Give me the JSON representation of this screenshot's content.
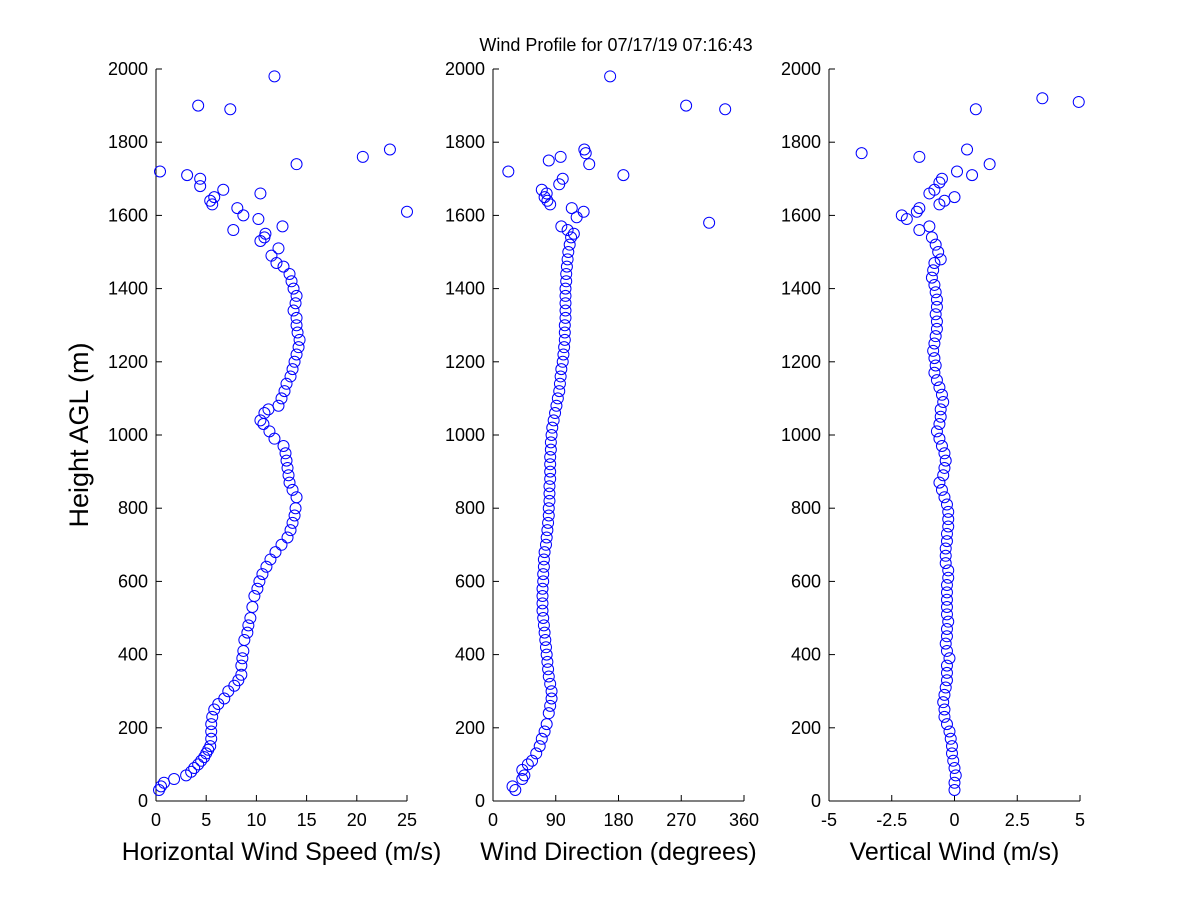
{
  "figure": {
    "title": "Wind Profile for  07/17/19 07:16:43",
    "ylabel": "Height AGL (m)",
    "marker_color": "#0000ff"
  },
  "chart_data": [
    {
      "type": "scatter",
      "xlabel": "Horizontal Wind Speed (m/s)",
      "xlim": [
        0,
        25
      ],
      "xticks": [
        "0",
        "5",
        "10",
        "15",
        "20",
        "25"
      ],
      "ylim": [
        0,
        2000
      ],
      "yticks": [
        "0",
        "200",
        "400",
        "600",
        "800",
        "1000",
        "1200",
        "1400",
        "1600",
        "1800",
        "2000"
      ],
      "grid": false,
      "points": [
        [
          0.3,
          30
        ],
        [
          0.5,
          40
        ],
        [
          0.8,
          50
        ],
        [
          1.8,
          60
        ],
        [
          3,
          70
        ],
        [
          3.5,
          80
        ],
        [
          3.8,
          90
        ],
        [
          4.2,
          100
        ],
        [
          4.5,
          110
        ],
        [
          4.8,
          120
        ],
        [
          5,
          130
        ],
        [
          5.2,
          140
        ],
        [
          5.4,
          150
        ],
        [
          5.5,
          170
        ],
        [
          5.5,
          190
        ],
        [
          5.5,
          210
        ],
        [
          5.6,
          230
        ],
        [
          5.8,
          250
        ],
        [
          6.2,
          265
        ],
        [
          6.8,
          280
        ],
        [
          7.2,
          300
        ],
        [
          7.8,
          315
        ],
        [
          8.2,
          330
        ],
        [
          8.5,
          345
        ],
        [
          8.5,
          370
        ],
        [
          8.6,
          390
        ],
        [
          8.7,
          410
        ],
        [
          8.8,
          440
        ],
        [
          9.1,
          460
        ],
        [
          9.2,
          480
        ],
        [
          9.4,
          500
        ],
        [
          9.6,
          530
        ],
        [
          9.8,
          560
        ],
        [
          10.1,
          580
        ],
        [
          10.3,
          600
        ],
        [
          10.6,
          620
        ],
        [
          11,
          640
        ],
        [
          11.4,
          660
        ],
        [
          11.9,
          680
        ],
        [
          12.5,
          700
        ],
        [
          13.1,
          720
        ],
        [
          13.4,
          740
        ],
        [
          13.6,
          760
        ],
        [
          13.8,
          780
        ],
        [
          13.9,
          800
        ],
        [
          14,
          830
        ],
        [
          13.6,
          850
        ],
        [
          13.3,
          870
        ],
        [
          13.2,
          890
        ],
        [
          13.1,
          910
        ],
        [
          13,
          930
        ],
        [
          12.9,
          950
        ],
        [
          12.7,
          970
        ],
        [
          11.8,
          990
        ],
        [
          11.3,
          1010
        ],
        [
          10.7,
          1030
        ],
        [
          10.4,
          1040
        ],
        [
          10.8,
          1060
        ],
        [
          11.2,
          1070
        ],
        [
          12.2,
          1080
        ],
        [
          12.5,
          1100
        ],
        [
          12.8,
          1120
        ],
        [
          13,
          1140
        ],
        [
          13.4,
          1160
        ],
        [
          13.6,
          1180
        ],
        [
          13.8,
          1200
        ],
        [
          14,
          1220
        ],
        [
          14.2,
          1240
        ],
        [
          14.3,
          1260
        ],
        [
          14.1,
          1280
        ],
        [
          14,
          1300
        ],
        [
          14,
          1320
        ],
        [
          13.7,
          1340
        ],
        [
          13.9,
          1360
        ],
        [
          14,
          1380
        ],
        [
          13.7,
          1400
        ],
        [
          13.5,
          1420
        ],
        [
          13.3,
          1440
        ],
        [
          12.7,
          1460
        ],
        [
          12,
          1470
        ],
        [
          11.5,
          1490
        ],
        [
          12.2,
          1510
        ],
        [
          10.4,
          1530
        ],
        [
          10.8,
          1540
        ],
        [
          10.9,
          1550
        ],
        [
          7.7,
          1560
        ],
        [
          12.6,
          1570
        ],
        [
          10.2,
          1590
        ],
        [
          25,
          1610
        ],
        [
          8.1,
          1620
        ],
        [
          8.7,
          1600
        ],
        [
          5.6,
          1630
        ],
        [
          5.4,
          1640
        ],
        [
          5.8,
          1650
        ],
        [
          10.4,
          1660
        ],
        [
          6.7,
          1670
        ],
        [
          4.4,
          1680
        ],
        [
          4.4,
          1700
        ],
        [
          3.1,
          1710
        ],
        [
          0.4,
          1720
        ],
        [
          14,
          1740
        ],
        [
          20.6,
          1760
        ],
        [
          23.3,
          1780
        ],
        [
          7.4,
          1890
        ],
        [
          4.2,
          1900
        ],
        [
          11.8,
          1980
        ]
      ]
    },
    {
      "type": "scatter",
      "xlabel": "Wind Direction (degrees)",
      "xlim": [
        0,
        360
      ],
      "xticks": [
        "0",
        "90",
        "180",
        "270",
        "360"
      ],
      "ylim": [
        0,
        2000
      ],
      "yticks": [
        "0",
        "200",
        "400",
        "600",
        "800",
        "1000",
        "1200",
        "1400",
        "1600",
        "1800",
        "2000"
      ],
      "grid": false,
      "points": [
        [
          32,
          30
        ],
        [
          28,
          40
        ],
        [
          42,
          60
        ],
        [
          45,
          70
        ],
        [
          42,
          85
        ],
        [
          50,
          100
        ],
        [
          56,
          110
        ],
        [
          62,
          130
        ],
        [
          67,
          150
        ],
        [
          70,
          170
        ],
        [
          74,
          190
        ],
        [
          77,
          210
        ],
        [
          80,
          240
        ],
        [
          82,
          260
        ],
        [
          84,
          280
        ],
        [
          84,
          300
        ],
        [
          82,
          320
        ],
        [
          80,
          340
        ],
        [
          79,
          360
        ],
        [
          78,
          380
        ],
        [
          77,
          400
        ],
        [
          76,
          420
        ],
        [
          75,
          440
        ],
        [
          74,
          460
        ],
        [
          73,
          480
        ],
        [
          72,
          500
        ],
        [
          71,
          520
        ],
        [
          71,
          540
        ],
        [
          71,
          560
        ],
        [
          71,
          580
        ],
        [
          72,
          600
        ],
        [
          72,
          620
        ],
        [
          73,
          640
        ],
        [
          73,
          660
        ],
        [
          74,
          680
        ],
        [
          76,
          700
        ],
        [
          77,
          720
        ],
        [
          78,
          740
        ],
        [
          79,
          760
        ],
        [
          80,
          780
        ],
        [
          80,
          800
        ],
        [
          81,
          820
        ],
        [
          81,
          840
        ],
        [
          81,
          860
        ],
        [
          82,
          880
        ],
        [
          82,
          900
        ],
        [
          82,
          920
        ],
        [
          82,
          940
        ],
        [
          83,
          960
        ],
        [
          83,
          980
        ],
        [
          84,
          1000
        ],
        [
          85,
          1020
        ],
        [
          87,
          1040
        ],
        [
          89,
          1060
        ],
        [
          91,
          1080
        ],
        [
          93,
          1100
        ],
        [
          95,
          1120
        ],
        [
          96,
          1140
        ],
        [
          97,
          1160
        ],
        [
          98,
          1180
        ],
        [
          100,
          1200
        ],
        [
          101,
          1220
        ],
        [
          102,
          1240
        ],
        [
          103,
          1260
        ],
        [
          103,
          1280
        ],
        [
          103,
          1300
        ],
        [
          104,
          1320
        ],
        [
          104,
          1340
        ],
        [
          104,
          1360
        ],
        [
          104,
          1380
        ],
        [
          104,
          1400
        ],
        [
          105,
          1420
        ],
        [
          105,
          1440
        ],
        [
          106,
          1460
        ],
        [
          107,
          1480
        ],
        [
          108,
          1500
        ],
        [
          110,
          1520
        ],
        [
          112,
          1540
        ],
        [
          116,
          1550
        ],
        [
          107,
          1560
        ],
        [
          98,
          1570
        ],
        [
          310,
          1580
        ],
        [
          120,
          1595
        ],
        [
          130,
          1610
        ],
        [
          113,
          1620
        ],
        [
          82,
          1630
        ],
        [
          78,
          1640
        ],
        [
          74,
          1650
        ],
        [
          77,
          1660
        ],
        [
          70,
          1670
        ],
        [
          95,
          1685
        ],
        [
          100,
          1700
        ],
        [
          187,
          1710
        ],
        [
          22,
          1720
        ],
        [
          138,
          1740
        ],
        [
          80,
          1750
        ],
        [
          97,
          1760
        ],
        [
          133,
          1770
        ],
        [
          131,
          1780
        ],
        [
          333,
          1890
        ],
        [
          277,
          1900
        ],
        [
          168,
          1980
        ]
      ]
    },
    {
      "type": "scatter",
      "xlabel": "Vertical Wind (m/s)",
      "xlim": [
        -5,
        5
      ],
      "xticks": [
        "-5",
        "-2.5",
        "0",
        "2.5",
        "5"
      ],
      "ylim": [
        0,
        2000
      ],
      "yticks": [
        "0",
        "200",
        "400",
        "600",
        "800",
        "1000",
        "1200",
        "1400",
        "1600",
        "1800",
        "2000"
      ],
      "grid": false,
      "points": [
        [
          0,
          30
        ],
        [
          0,
          50
        ],
        [
          0.05,
          70
        ],
        [
          0,
          90
        ],
        [
          -0.05,
          110
        ],
        [
          -0.1,
          130
        ],
        [
          -0.1,
          150
        ],
        [
          -0.15,
          170
        ],
        [
          -0.2,
          190
        ],
        [
          -0.3,
          210
        ],
        [
          -0.4,
          230
        ],
        [
          -0.4,
          250
        ],
        [
          -0.45,
          270
        ],
        [
          -0.4,
          290
        ],
        [
          -0.35,
          310
        ],
        [
          -0.3,
          330
        ],
        [
          -0.3,
          350
        ],
        [
          -0.3,
          370
        ],
        [
          -0.2,
          390
        ],
        [
          -0.3,
          410
        ],
        [
          -0.35,
          430
        ],
        [
          -0.3,
          450
        ],
        [
          -0.3,
          470
        ],
        [
          -0.25,
          490
        ],
        [
          -0.3,
          510
        ],
        [
          -0.3,
          530
        ],
        [
          -0.3,
          550
        ],
        [
          -0.3,
          570
        ],
        [
          -0.3,
          590
        ],
        [
          -0.25,
          610
        ],
        [
          -0.25,
          630
        ],
        [
          -0.35,
          650
        ],
        [
          -0.35,
          670
        ],
        [
          -0.35,
          690
        ],
        [
          -0.3,
          710
        ],
        [
          -0.3,
          730
        ],
        [
          -0.25,
          750
        ],
        [
          -0.25,
          770
        ],
        [
          -0.25,
          790
        ],
        [
          -0.3,
          810
        ],
        [
          -0.4,
          830
        ],
        [
          -0.5,
          850
        ],
        [
          -0.6,
          870
        ],
        [
          -0.45,
          890
        ],
        [
          -0.4,
          910
        ],
        [
          -0.35,
          930
        ],
        [
          -0.4,
          950
        ],
        [
          -0.5,
          970
        ],
        [
          -0.6,
          990
        ],
        [
          -0.7,
          1010
        ],
        [
          -0.6,
          1030
        ],
        [
          -0.55,
          1050
        ],
        [
          -0.55,
          1070
        ],
        [
          -0.45,
          1090
        ],
        [
          -0.5,
          1110
        ],
        [
          -0.6,
          1130
        ],
        [
          -0.7,
          1150
        ],
        [
          -0.8,
          1170
        ],
        [
          -0.75,
          1190
        ],
        [
          -0.8,
          1210
        ],
        [
          -0.85,
          1230
        ],
        [
          -0.8,
          1250
        ],
        [
          -0.75,
          1270
        ],
        [
          -0.7,
          1290
        ],
        [
          -0.7,
          1310
        ],
        [
          -0.75,
          1330
        ],
        [
          -0.7,
          1350
        ],
        [
          -0.7,
          1370
        ],
        [
          -0.75,
          1390
        ],
        [
          -0.8,
          1410
        ],
        [
          -0.9,
          1430
        ],
        [
          -0.85,
          1450
        ],
        [
          -0.8,
          1470
        ],
        [
          -0.55,
          1480
        ],
        [
          -0.65,
          1500
        ],
        [
          -0.75,
          1520
        ],
        [
          -0.9,
          1540
        ],
        [
          -1.4,
          1560
        ],
        [
          -1,
          1570
        ],
        [
          -1.9,
          1590
        ],
        [
          -2.1,
          1600
        ],
        [
          -1.5,
          1610
        ],
        [
          -1.4,
          1620
        ],
        [
          -0.6,
          1630
        ],
        [
          -0.4,
          1640
        ],
        [
          0,
          1650
        ],
        [
          -1,
          1660
        ],
        [
          -0.8,
          1670
        ],
        [
          -0.6,
          1690
        ],
        [
          -0.5,
          1700
        ],
        [
          0.7,
          1710
        ],
        [
          0.1,
          1720
        ],
        [
          1.4,
          1740
        ],
        [
          -3.7,
          1770
        ],
        [
          -1.4,
          1760
        ],
        [
          0.5,
          1780
        ],
        [
          0.85,
          1890
        ],
        [
          4.95,
          1910
        ],
        [
          3.5,
          1920
        ]
      ]
    }
  ]
}
